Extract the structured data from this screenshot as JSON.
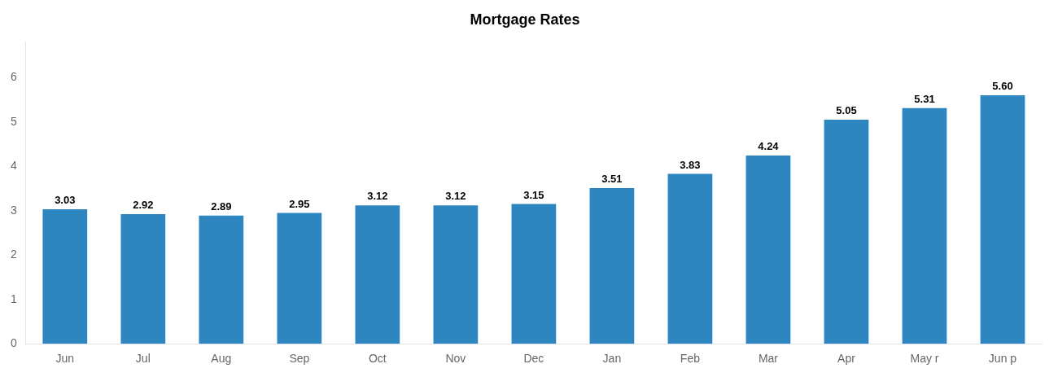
{
  "chart_data": {
    "type": "bar",
    "title": "Mortgage Rates",
    "categories": [
      "Jun",
      "Jul",
      "Aug",
      "Sep",
      "Oct",
      "Nov",
      "Dec",
      "Jan",
      "Feb",
      "Mar",
      "Apr",
      "May r",
      "Jun p"
    ],
    "values": [
      3.03,
      2.92,
      2.89,
      2.95,
      3.12,
      3.12,
      3.15,
      3.51,
      3.83,
      4.24,
      5.05,
      5.31,
      5.6
    ],
    "value_labels": [
      "3.03",
      "2.92",
      "2.89",
      "2.95",
      "3.12",
      "3.12",
      "3.15",
      "3.51",
      "3.83",
      "4.24",
      "5.05",
      "5.31",
      "5.60"
    ],
    "color": "#2E86C1",
    "ylim": [
      0,
      6.8
    ],
    "yticks": [
      0,
      1,
      2,
      3,
      4,
      5,
      6
    ],
    "grid": false,
    "data_labels": true
  }
}
